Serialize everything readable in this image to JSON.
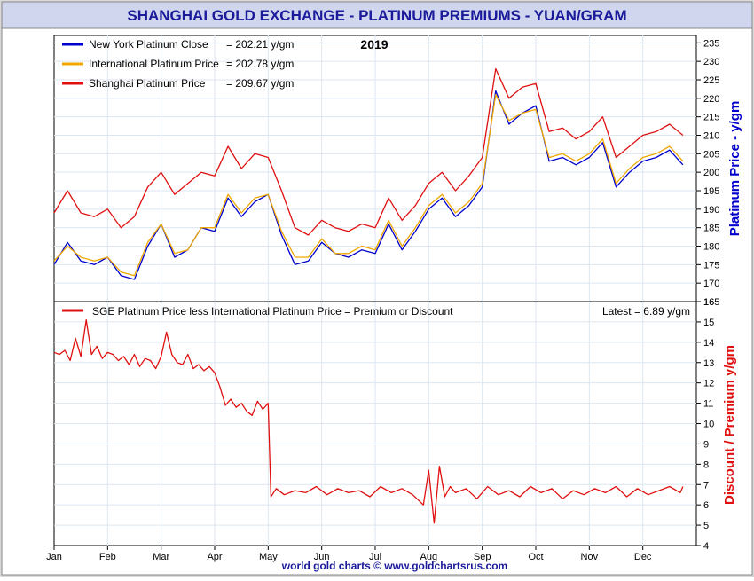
{
  "title": "SHANGHAI GOLD EXCHANGE - PLATINUM PREMIUMS - YUAN/GRAM",
  "footer": "world gold charts © www.goldchartsrus.com",
  "colors": {
    "title_text": "#1a1a9a",
    "header_bg": "#cfd6ee",
    "frame_bg": "#d9d9d9",
    "grid": "#dce6f0",
    "new_york": "#0000cc",
    "international": "#f0a800",
    "shanghai": "#e01010",
    "premium": "#e01010"
  },
  "chart_data": [
    {
      "type": "line",
      "year_label": "2019",
      "ylabel": "Platinum Price - y/gm",
      "ylim": [
        165,
        237
      ],
      "yticks": [
        165,
        170,
        175,
        180,
        185,
        190,
        195,
        200,
        205,
        210,
        215,
        220,
        225,
        230,
        235
      ],
      "x_months": [
        "Jan",
        "Feb",
        "Mar",
        "Apr",
        "May",
        "Jun",
        "Jul",
        "Aug",
        "Sep",
        "Oct",
        "Nov",
        "Dec"
      ],
      "legend": [
        {
          "key": "new_york",
          "label": "New York Platinum Close",
          "value": "= 202.21 y/gm"
        },
        {
          "key": "international",
          "label": "International Platinum Price",
          "value": "= 202.78 y/gm"
        },
        {
          "key": "shanghai",
          "label": "Shanghai Platinum Price",
          "value": "= 209.67 y/gm"
        }
      ],
      "series": [
        {
          "name": "New York Platinum Close",
          "key": "new_york",
          "x": [
            0,
            0.25,
            0.5,
            0.75,
            1,
            1.25,
            1.5,
            1.75,
            2,
            2.25,
            2.5,
            2.75,
            3,
            3.25,
            3.5,
            3.75,
            4,
            4.25,
            4.5,
            4.75,
            5,
            5.25,
            5.5,
            5.75,
            6,
            6.25,
            6.5,
            6.75,
            7,
            7.25,
            7.5,
            7.75,
            8,
            8.25,
            8.5,
            8.75,
            9,
            9.25,
            9.5,
            9.75,
            10,
            10.25,
            10.5,
            10.75,
            11,
            11.25,
            11.5,
            11.75
          ],
          "values": [
            175,
            181,
            176,
            175,
            177,
            172,
            171,
            180,
            186,
            177,
            179,
            185,
            184,
            193,
            188,
            192,
            194,
            183,
            175,
            176,
            181,
            178,
            177,
            179,
            178,
            186,
            179,
            184,
            190,
            193,
            188,
            191,
            196,
            222,
            213,
            216,
            218,
            203,
            204,
            202,
            204,
            208,
            196,
            200,
            203,
            204,
            206,
            202
          ]
        },
        {
          "name": "International Platinum Price",
          "key": "international",
          "x": [
            0,
            0.25,
            0.5,
            0.75,
            1,
            1.25,
            1.5,
            1.75,
            2,
            2.25,
            2.5,
            2.75,
            3,
            3.25,
            3.5,
            3.75,
            4,
            4.25,
            4.5,
            4.75,
            5,
            5.25,
            5.5,
            5.75,
            6,
            6.25,
            6.5,
            6.75,
            7,
            7.25,
            7.5,
            7.75,
            8,
            8.25,
            8.5,
            8.75,
            9,
            9.25,
            9.5,
            9.75,
            10,
            10.25,
            10.5,
            10.75,
            11,
            11.25,
            11.5,
            11.75
          ],
          "values": [
            176,
            180,
            177,
            176,
            177,
            173,
            172,
            181,
            186,
            178,
            179,
            185,
            185,
            194,
            189,
            193,
            194,
            184,
            177,
            177,
            182,
            178,
            178,
            180,
            179,
            187,
            180,
            185,
            191,
            194,
            189,
            192,
            197,
            221,
            214,
            216,
            217,
            204,
            205,
            203,
            205,
            209,
            197,
            201,
            204,
            205,
            207,
            203
          ]
        },
        {
          "name": "Shanghai Platinum Price",
          "key": "shanghai",
          "x": [
            0,
            0.25,
            0.5,
            0.75,
            1,
            1.25,
            1.5,
            1.75,
            2,
            2.25,
            2.5,
            2.75,
            3,
            3.25,
            3.5,
            3.75,
            4,
            4.25,
            4.5,
            4.75,
            5,
            5.25,
            5.5,
            5.75,
            6,
            6.25,
            6.5,
            6.75,
            7,
            7.25,
            7.5,
            7.75,
            8,
            8.25,
            8.5,
            8.75,
            9,
            9.25,
            9.5,
            9.75,
            10,
            10.25,
            10.5,
            10.75,
            11,
            11.25,
            11.5,
            11.75
          ],
          "values": [
            189,
            195,
            189,
            188,
            190,
            185,
            188,
            196,
            200,
            194,
            197,
            200,
            199,
            207,
            201,
            205,
            204,
            195,
            185,
            183,
            187,
            185,
            184,
            186,
            185,
            193,
            187,
            191,
            197,
            200,
            195,
            199,
            204,
            228,
            220,
            223,
            224,
            211,
            212,
            209,
            211,
            215,
            204,
            207,
            210,
            211,
            213,
            210
          ]
        }
      ]
    },
    {
      "type": "line",
      "ylabel": "Discount / Premium y/gm",
      "legend_label": "SGE Platinum Price less International Platinum Price = Premium or Discount",
      "latest": "Latest = 6.89 y/gm",
      "ylim": [
        4,
        16
      ],
      "yticks": [
        4,
        5,
        6,
        7,
        8,
        9,
        10,
        11,
        12,
        13,
        14,
        15,
        16
      ],
      "x_months": [
        "Jan",
        "Feb",
        "Mar",
        "Apr",
        "May",
        "Jun",
        "Jul",
        "Aug",
        "Sep",
        "Oct",
        "Nov",
        "Dec"
      ],
      "series": [
        {
          "name": "SGE Platinum Price less International Platinum Price = Premium or Discount",
          "key": "premium",
          "x": [
            0,
            0.1,
            0.2,
            0.3,
            0.4,
            0.5,
            0.6,
            0.7,
            0.8,
            0.9,
            1.0,
            1.1,
            1.2,
            1.3,
            1.4,
            1.5,
            1.6,
            1.7,
            1.8,
            1.9,
            2.0,
            2.1,
            2.2,
            2.3,
            2.4,
            2.5,
            2.6,
            2.7,
            2.8,
            2.9,
            3.0,
            3.1,
            3.2,
            3.3,
            3.4,
            3.5,
            3.6,
            3.7,
            3.8,
            3.9,
            4.0,
            4.05,
            4.15,
            4.3,
            4.5,
            4.7,
            4.9,
            5.1,
            5.3,
            5.5,
            5.7,
            5.9,
            6.1,
            6.3,
            6.5,
            6.7,
            6.9,
            7.0,
            7.1,
            7.2,
            7.3,
            7.4,
            7.5,
            7.7,
            7.9,
            8.1,
            8.3,
            8.5,
            8.7,
            8.9,
            9.1,
            9.3,
            9.5,
            9.7,
            9.9,
            10.1,
            10.3,
            10.5,
            10.7,
            10.9,
            11.1,
            11.3,
            11.5,
            11.7,
            11.75
          ],
          "values": [
            13.5,
            13.4,
            13.6,
            13.1,
            14.2,
            13.3,
            15.1,
            13.4,
            13.8,
            13.2,
            13.5,
            13.4,
            13.1,
            13.3,
            12.9,
            13.4,
            12.8,
            13.2,
            13.1,
            12.7,
            13.3,
            14.5,
            13.4,
            13.0,
            12.9,
            13.4,
            12.7,
            12.9,
            12.6,
            12.8,
            12.5,
            11.8,
            10.9,
            11.2,
            10.8,
            11.0,
            10.6,
            10.4,
            11.1,
            10.7,
            11.0,
            6.4,
            6.8,
            6.5,
            6.7,
            6.6,
            6.9,
            6.5,
            6.8,
            6.6,
            6.7,
            6.4,
            6.9,
            6.6,
            6.8,
            6.5,
            6.0,
            7.7,
            5.1,
            7.9,
            6.4,
            6.9,
            6.6,
            6.8,
            6.3,
            6.9,
            6.5,
            6.7,
            6.4,
            6.9,
            6.6,
            6.8,
            6.3,
            6.7,
            6.5,
            6.8,
            6.6,
            6.9,
            6.4,
            6.8,
            6.5,
            6.7,
            6.9,
            6.6,
            6.9
          ]
        }
      ]
    }
  ]
}
